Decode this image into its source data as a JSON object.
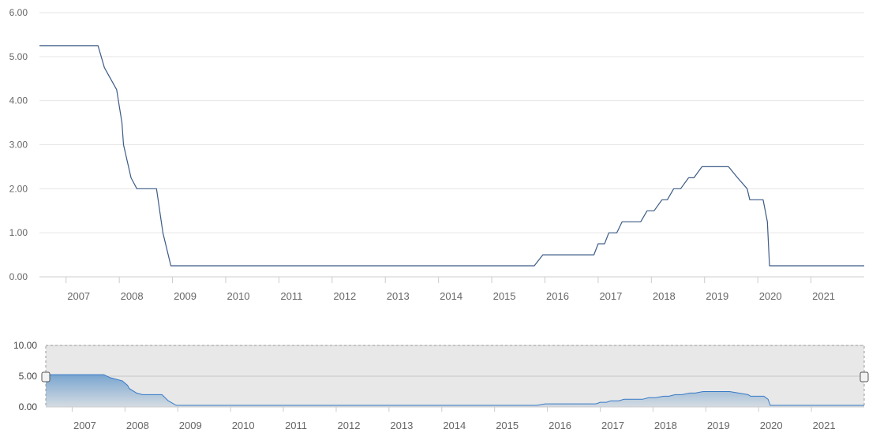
{
  "chart_data": [
    {
      "type": "line",
      "ylim": [
        0,
        6
      ],
      "y_ticks": [
        "0.00",
        "1.00",
        "2.00",
        "3.00",
        "4.00",
        "5.00",
        "6.00"
      ],
      "x_ticks": [
        "2007",
        "2008",
        "2009",
        "2010",
        "2011",
        "2012",
        "2013",
        "2014",
        "2015",
        "2016",
        "2017",
        "2018",
        "2019",
        "2020",
        "2021"
      ],
      "x_range": [
        2006.5,
        2022.0
      ],
      "grid": true,
      "line_color": "#3b5b85",
      "series": [
        {
          "points": [
            [
              2006.5,
              5.25
            ],
            [
              2007.6,
              5.25
            ],
            [
              2007.72,
              4.75
            ],
            [
              2007.95,
              4.25
            ],
            [
              2008.05,
              3.5
            ],
            [
              2008.08,
              3.0
            ],
            [
              2008.22,
              2.25
            ],
            [
              2008.33,
              2.0
            ],
            [
              2008.7,
              2.0
            ],
            [
              2008.82,
              1.0
            ],
            [
              2008.97,
              0.25
            ],
            [
              2015.8,
              0.25
            ],
            [
              2015.96,
              0.5
            ],
            [
              2016.92,
              0.5
            ],
            [
              2017.0,
              0.75
            ],
            [
              2017.12,
              0.75
            ],
            [
              2017.2,
              1.0
            ],
            [
              2017.35,
              1.0
            ],
            [
              2017.45,
              1.25
            ],
            [
              2017.8,
              1.25
            ],
            [
              2017.92,
              1.5
            ],
            [
              2018.05,
              1.5
            ],
            [
              2018.2,
              1.75
            ],
            [
              2018.3,
              1.75
            ],
            [
              2018.42,
              2.0
            ],
            [
              2018.55,
              2.0
            ],
            [
              2018.7,
              2.25
            ],
            [
              2018.8,
              2.25
            ],
            [
              2018.95,
              2.5
            ],
            [
              2019.45,
              2.5
            ],
            [
              2019.62,
              2.25
            ],
            [
              2019.8,
              2.0
            ],
            [
              2019.85,
              1.75
            ],
            [
              2020.1,
              1.75
            ],
            [
              2020.18,
              1.25
            ],
            [
              2020.22,
              0.25
            ],
            [
              2022.0,
              0.25
            ]
          ]
        }
      ]
    },
    {
      "type": "area",
      "role": "navigator",
      "ylim": [
        0,
        10
      ],
      "y_ticks": [
        "0.00",
        "5.00",
        "10.00"
      ],
      "x_ticks": [
        "2007",
        "2008",
        "2009",
        "2010",
        "2011",
        "2012",
        "2013",
        "2014",
        "2015",
        "2016",
        "2017",
        "2018",
        "2019",
        "2020",
        "2021"
      ],
      "x_range": [
        2006.5,
        2022.0
      ],
      "line_color": "#2f7ed8",
      "fill_colors": [
        "#6fa9e0",
        "#e6eff8"
      ],
      "selection": "full range"
    }
  ]
}
